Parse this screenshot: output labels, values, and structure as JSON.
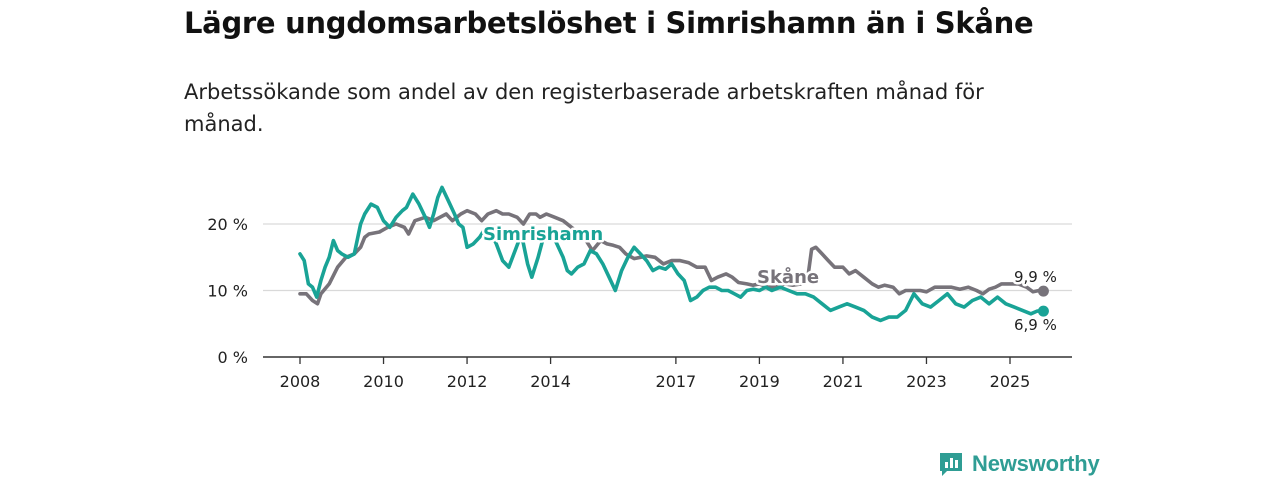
{
  "title": "Lägre ungdomsarbetslöshet i Simrishamn än i Skåne",
  "subtitle": "Arbetssökande som andel av den registerbaserade arbetskraften månad för månad.",
  "brand": {
    "name": "Newsworthy",
    "icon": "newsworthy-logo-icon"
  },
  "colors": {
    "simrishamn": "#19a396",
    "skane": "#77737a",
    "grid": "#d9d9d9",
    "axis": "#333333"
  },
  "chart_data": {
    "type": "line",
    "title": "Lägre ungdomsarbetslöshet i Simrishamn än i Skåne",
    "xlabel": "",
    "ylabel": "",
    "xlim": [
      2007.9,
      2026.75
    ],
    "ylim": [
      0,
      22
    ],
    "y_ticks": [
      {
        "value": 0,
        "label": "0 %"
      },
      {
        "value": 10,
        "label": "10 %"
      },
      {
        "value": 20,
        "label": "20 %"
      }
    ],
    "x_ticks": [
      {
        "value": 2008,
        "label": "2008"
      },
      {
        "value": 2010,
        "label": "2010"
      },
      {
        "value": 2012,
        "label": "2012"
      },
      {
        "value": 2014,
        "label": "2014"
      },
      {
        "value": 2017,
        "label": "2017"
      },
      {
        "value": 2019,
        "label": "2019"
      },
      {
        "value": 2021,
        "label": "2021"
      },
      {
        "value": 2023,
        "label": "2023"
      },
      {
        "value": 2025,
        "label": "2025"
      }
    ],
    "series": [
      {
        "name": "Skåne",
        "label": "Skåne",
        "end_label": "9,9 %",
        "x": [
          2008.0,
          2008.15,
          2008.3,
          2008.42,
          2008.5,
          2008.7,
          2008.9,
          2009.1,
          2009.3,
          2009.45,
          2009.55,
          2009.65,
          2009.9,
          2010.1,
          2010.3,
          2010.5,
          2010.6,
          2010.75,
          2011.0,
          2011.2,
          2011.35,
          2011.5,
          2011.65,
          2011.75,
          2011.85,
          2012.0,
          2012.2,
          2012.35,
          2012.5,
          2012.7,
          2012.85,
          2013.0,
          2013.2,
          2013.35,
          2013.5,
          2013.65,
          2013.75,
          2013.9,
          2014.1,
          2014.3,
          2014.5,
          2014.7,
          2014.85,
          2015.0,
          2015.2,
          2015.35,
          2015.5,
          2015.65,
          2015.8,
          2016.0,
          2016.15,
          2016.3,
          2016.5,
          2016.7,
          2016.9,
          2017.1,
          2017.3,
          2017.5,
          2017.7,
          2017.85,
          2018.0,
          2018.2,
          2018.35,
          2018.5,
          2018.7,
          2018.85,
          2019.0,
          2019.2,
          2019.4,
          2019.6,
          2019.8,
          2020.0,
          2020.15,
          2020.25,
          2020.35,
          2020.5,
          2020.65,
          2020.8,
          2021.0,
          2021.15,
          2021.3,
          2021.5,
          2021.7,
          2021.85,
          2022.0,
          2022.2,
          2022.35,
          2022.5,
          2022.7,
          2022.85,
          2023.0,
          2023.2,
          2023.4,
          2023.6,
          2023.8,
          2024.0,
          2024.2,
          2024.35,
          2024.5,
          2024.65,
          2024.8,
          2025.0,
          2025.2,
          2025.4,
          2025.55,
          2025.7,
          2025.8
        ],
        "values": [
          9.5,
          9.5,
          8.5,
          8.0,
          9.5,
          11.0,
          13.5,
          15.0,
          15.5,
          16.5,
          18.0,
          18.5,
          18.8,
          19.5,
          20.0,
          19.5,
          18.5,
          20.5,
          21.0,
          20.5,
          21.0,
          21.5,
          20.5,
          21.0,
          21.5,
          22.0,
          21.5,
          20.5,
          21.5,
          22.0,
          21.5,
          21.5,
          21.0,
          20.0,
          21.5,
          21.5,
          21.0,
          21.5,
          21.0,
          20.5,
          19.5,
          18.5,
          17.5,
          16.0,
          17.5,
          17.0,
          16.8,
          16.5,
          15.5,
          14.8,
          15.0,
          15.2,
          15.0,
          14.0,
          14.5,
          14.5,
          14.2,
          13.5,
          13.5,
          11.5,
          12.0,
          12.5,
          12.0,
          11.2,
          11.0,
          10.8,
          11.0,
          10.5,
          10.5,
          11.0,
          10.8,
          11.0,
          11.5,
          16.2,
          16.5,
          15.5,
          14.5,
          13.5,
          13.5,
          12.5,
          13.0,
          12.0,
          11.0,
          10.5,
          10.8,
          10.5,
          9.5,
          10.0,
          10.0,
          10.0,
          9.8,
          10.5,
          10.5,
          10.5,
          10.2,
          10.5,
          10.0,
          9.5,
          10.2,
          10.5,
          11.0,
          11.0,
          11.0,
          10.5,
          9.8,
          10.0,
          9.9
        ]
      },
      {
        "name": "Simrishamn",
        "label": "Simrishamn",
        "end_label": "6,9 %",
        "x": [
          2008.0,
          2008.1,
          2008.2,
          2008.3,
          2008.4,
          2008.5,
          2008.6,
          2008.7,
          2008.8,
          2008.9,
          2009.0,
          2009.15,
          2009.3,
          2009.45,
          2009.55,
          2009.7,
          2009.85,
          2010.0,
          2010.15,
          2010.3,
          2010.45,
          2010.55,
          2010.7,
          2010.85,
          2011.0,
          2011.1,
          2011.2,
          2011.3,
          2011.4,
          2011.55,
          2011.7,
          2011.8,
          2011.9,
          2012.0,
          2012.15,
          2012.3,
          2012.45,
          2012.55,
          2012.7,
          2012.85,
          2013.0,
          2013.15,
          2013.3,
          2013.45,
          2013.55,
          2013.7,
          2013.85,
          2014.0,
          2014.15,
          2014.3,
          2014.4,
          2014.5,
          2014.65,
          2014.8,
          2014.95,
          2015.1,
          2015.25,
          2015.4,
          2015.55,
          2015.7,
          2015.85,
          2016.0,
          2016.15,
          2016.3,
          2016.45,
          2016.6,
          2016.75,
          2016.9,
          2017.05,
          2017.2,
          2017.35,
          2017.5,
          2017.65,
          2017.8,
          2017.95,
          2018.1,
          2018.25,
          2018.4,
          2018.55,
          2018.7,
          2018.85,
          2019.0,
          2019.15,
          2019.3,
          2019.5,
          2019.7,
          2019.9,
          2020.1,
          2020.3,
          2020.5,
          2020.7,
          2020.9,
          2021.1,
          2021.3,
          2021.5,
          2021.7,
          2021.9,
          2022.1,
          2022.3,
          2022.5,
          2022.7,
          2022.9,
          2023.1,
          2023.3,
          2023.5,
          2023.7,
          2023.9,
          2024.1,
          2024.3,
          2024.5,
          2024.7,
          2024.9,
          2025.1,
          2025.3,
          2025.5,
          2025.65,
          2025.8
        ],
        "values": [
          15.5,
          14.5,
          11.0,
          10.5,
          9.0,
          11.5,
          13.5,
          15.0,
          17.5,
          16.0,
          15.5,
          15.0,
          15.5,
          20.0,
          21.5,
          23.0,
          22.5,
          20.5,
          19.5,
          21.0,
          22.0,
          22.5,
          24.5,
          23.0,
          21.0,
          19.5,
          21.5,
          24.0,
          25.5,
          23.5,
          21.5,
          20.0,
          19.5,
          16.5,
          17.0,
          18.0,
          19.5,
          19.0,
          17.0,
          14.5,
          13.5,
          16.0,
          18.5,
          14.0,
          12.0,
          15.0,
          18.5,
          19.0,
          17.0,
          15.0,
          13.0,
          12.5,
          13.5,
          14.0,
          16.0,
          15.5,
          14.0,
          12.0,
          10.0,
          13.0,
          15.0,
          16.5,
          15.5,
          14.5,
          13.0,
          13.5,
          13.2,
          14.0,
          12.5,
          11.5,
          8.5,
          9.0,
          10.0,
          10.5,
          10.5,
          10.0,
          10.0,
          9.5,
          9.0,
          10.0,
          10.2,
          10.0,
          10.5,
          10.0,
          10.5,
          10.0,
          9.5,
          9.5,
          9.0,
          8.0,
          7.0,
          7.5,
          8.0,
          7.5,
          7.0,
          6.0,
          5.5,
          6.0,
          6.0,
          7.0,
          9.5,
          8.0,
          7.5,
          8.5,
          9.5,
          8.0,
          7.5,
          8.5,
          9.0,
          8.0,
          9.0,
          8.0,
          7.5,
          7.0,
          6.5,
          6.9,
          6.9
        ]
      }
    ],
    "legend": "direct-labels"
  }
}
